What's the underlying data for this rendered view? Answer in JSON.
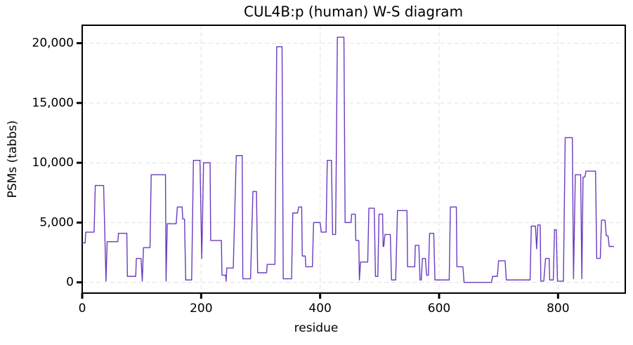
{
  "chart_data": {
    "type": "line",
    "title": "CUL4B:p (human) W-S diagram",
    "xlabel": "residue",
    "ylabel": "PSMs (tabbs)",
    "color": "#6a3cbf",
    "grid": true,
    "xlim": [
      0,
      913
    ],
    "ylim": [
      -900,
      21500
    ],
    "xticks": [
      0,
      200,
      400,
      600,
      800
    ],
    "yticks": [
      0,
      {
        "value": 5000,
        "label": "5,000"
      },
      {
        "value": 10000,
        "label": "10,000"
      },
      {
        "value": 15000,
        "label": "15,000"
      },
      {
        "value": 20000,
        "label": "20,000"
      }
    ],
    "x": [
      0,
      5,
      6,
      20,
      22,
      36,
      40,
      42,
      60,
      61,
      75,
      76,
      90,
      91,
      99,
      101,
      103,
      114,
      116,
      140,
      141,
      143,
      158,
      160,
      168,
      169,
      172,
      174,
      184,
      187,
      198,
      201,
      204,
      215,
      216,
      234,
      235,
      241,
      242,
      243,
      254,
      259,
      269,
      270,
      283,
      287,
      293,
      295,
      310,
      311,
      324,
      327,
      336,
      338,
      352,
      354,
      362,
      364,
      369,
      370,
      375,
      376,
      387,
      389,
      400,
      402,
      410,
      412,
      419,
      421,
      426,
      429,
      440,
      442,
      452,
      453,
      459,
      460,
      465,
      466,
      468,
      480,
      482,
      491,
      493,
      497,
      499,
      505,
      506,
      507,
      509,
      518,
      520,
      527,
      530,
      546,
      547,
      559,
      560,
      566,
      568,
      570,
      572,
      577,
      579,
      582,
      584,
      591,
      593,
      617,
      619,
      629,
      630,
      640,
      642,
      688,
      690,
      698,
      700,
      711,
      713,
      753,
      755,
      762,
      764,
      766,
      770,
      771,
      776,
      779,
      785,
      786,
      792,
      794,
      797,
      799,
      809,
      812,
      824,
      826,
      829,
      838,
      840,
      842,
      845,
      847,
      863,
      865,
      871,
      873,
      879,
      881,
      884,
      886,
      894
    ],
    "values": [
      3300,
      3300,
      4200,
      4200,
      8100,
      8100,
      100,
      3400,
      3400,
      4100,
      4100,
      500,
      500,
      2000,
      2000,
      100,
      2900,
      2900,
      9000,
      9000,
      100,
      4900,
      4900,
      6300,
      6300,
      5300,
      5300,
      200,
      200,
      10200,
      10200,
      2000,
      10000,
      10000,
      3500,
      3500,
      600,
      600,
      100,
      1200,
      1200,
      10600,
      10600,
      300,
      300,
      7600,
      7600,
      800,
      800,
      1500,
      1500,
      19700,
      19700,
      300,
      300,
      5800,
      5800,
      6300,
      6300,
      2200,
      2200,
      1300,
      1300,
      5000,
      5000,
      4200,
      4200,
      10200,
      10200,
      4000,
      4000,
      20500,
      20500,
      5000,
      5000,
      5700,
      5700,
      3500,
      3500,
      200,
      1700,
      1700,
      6200,
      6200,
      500,
      500,
      5700,
      5700,
      3000,
      3000,
      4000,
      4000,
      200,
      200,
      6000,
      6000,
      1300,
      1300,
      3100,
      3100,
      200,
      200,
      2000,
      2000,
      600,
      600,
      4100,
      4100,
      200,
      200,
      6300,
      6300,
      1300,
      1300,
      0,
      0,
      500,
      500,
      1800,
      1800,
      200,
      200,
      4700,
      4700,
      2800,
      4800,
      4800,
      100,
      100,
      2000,
      2000,
      200,
      200,
      4400,
      4400,
      100,
      100,
      12100,
      12100,
      300,
      9000,
      9000,
      300,
      8800,
      8800,
      9300,
      9300,
      2000,
      2000,
      5200,
      5200,
      3900,
      3900,
      3000,
      3000
    ]
  }
}
